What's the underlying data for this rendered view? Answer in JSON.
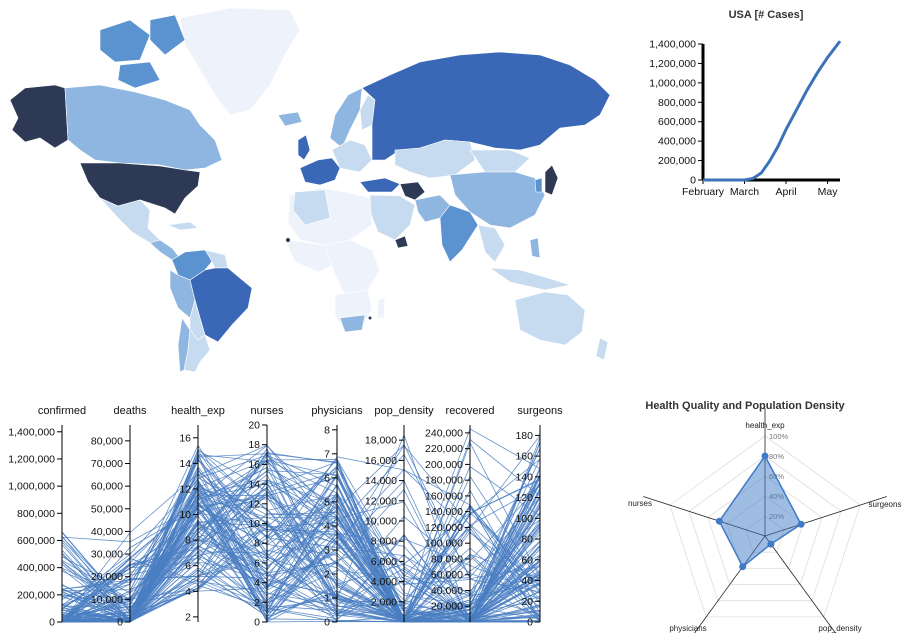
{
  "map": {
    "palette": [
      "#eef3fb",
      "#c6dbef",
      "#8fb6e0",
      "#5b93d1",
      "#3a68b6",
      "#2e3a55"
    ]
  },
  "line_chart": {
    "title": "USA [# Cases]",
    "color": "#3d72b8"
  },
  "radar": {
    "title": "Health Quality and Population Density",
    "color": "#3f7bc8"
  },
  "parallel": {
    "color": "#4a7ec2"
  },
  "chart_data": [
    {
      "type": "line",
      "title": "USA [# Cases]",
      "x": [
        "February",
        "March",
        "April",
        "May"
      ],
      "x_index": [
        0,
        1,
        2,
        3
      ],
      "ylim": [
        0,
        1400000
      ],
      "yticks": [
        0,
        200000,
        400000,
        600000,
        800000,
        1000000,
        1200000,
        1400000
      ],
      "series": [
        {
          "points": [
            [
              0,
              0
            ],
            [
              0.5,
              15
            ],
            [
              1.0,
              500
            ],
            [
              1.2,
              15000
            ],
            [
              1.4,
              70000
            ],
            [
              1.6,
              190000
            ],
            [
              1.8,
              340000
            ],
            [
              2.0,
              520000
            ],
            [
              2.25,
              720000
            ],
            [
              2.5,
              920000
            ],
            [
              2.75,
              1100000
            ],
            [
              3.0,
              1260000
            ],
            [
              3.3,
              1430000
            ]
          ]
        }
      ]
    },
    {
      "type": "parallel",
      "axes": [
        {
          "name": "confirmed",
          "ticks": [
            0,
            200000,
            400000,
            600000,
            800000,
            1000000,
            1200000,
            1400000
          ],
          "range": [
            0,
            1450000
          ]
        },
        {
          "name": "deaths",
          "ticks": [
            0,
            10000,
            20000,
            30000,
            40000,
            50000,
            60000,
            70000,
            80000
          ],
          "range": [
            0,
            87000
          ]
        },
        {
          "name": "health_exp",
          "ticks": [
            2,
            4,
            6,
            8,
            10,
            12,
            14,
            16
          ],
          "range": [
            1.6,
            17
          ]
        },
        {
          "name": "nurses",
          "ticks": [
            0,
            2,
            4,
            6,
            8,
            10,
            12,
            14,
            16,
            18,
            20
          ],
          "range": [
            0,
            20
          ]
        },
        {
          "name": "physicians",
          "ticks": [
            0,
            1,
            2,
            3,
            4,
            5,
            6,
            7,
            8
          ],
          "range": [
            0,
            8.2
          ]
        },
        {
          "name": "pop_density",
          "ticks": [
            2000,
            4000,
            6000,
            8000,
            10000,
            12000,
            14000,
            16000,
            18000
          ],
          "range": [
            0,
            19500
          ]
        },
        {
          "name": "recovered",
          "ticks": [
            20000,
            40000,
            60000,
            80000,
            100000,
            120000,
            140000,
            160000,
            180000,
            200000,
            220000,
            240000
          ],
          "range": [
            0,
            250000
          ]
        },
        {
          "name": "surgeons",
          "ticks": [
            0,
            20,
            40,
            60,
            80,
            100,
            120,
            140,
            160,
            180
          ],
          "range": [
            0,
            190
          ]
        }
      ]
    },
    {
      "type": "radar",
      "title": "Health Quality and Population Density",
      "axes": [
        "health_exp",
        "surgeons",
        "pop_density",
        "physicians",
        "nurses"
      ],
      "levels": [
        "20%",
        "40%",
        "60%",
        "80%",
        "100%"
      ],
      "values": [
        0.8,
        0.38,
        0.1,
        0.38,
        0.48
      ]
    }
  ]
}
